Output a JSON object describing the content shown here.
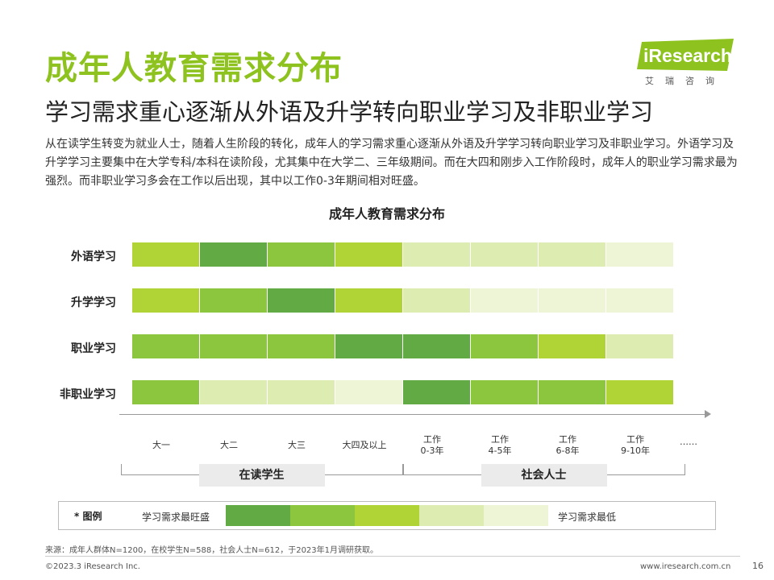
{
  "header": {
    "title": "成年人教育需求分布",
    "subtitle": "学习需求重心逐渐从外语及升学转向职业学习及非职业学习"
  },
  "logo": {
    "text": "iResearch",
    "cn": "艾瑞咨询",
    "color": "#8dc21f"
  },
  "description": "从在读学生转变为就业人士，随着人生阶段的转化，成年人的学习需求重心逐渐从外语及升学学习转向职业学习及非职业学习。外语学习及升学学习主要集中在大学专科/本科在读阶段，尤其集中在大学二、三年级期间。而在大四和刚步入工作阶段时，成年人的职业学习需求最为强烈。而非职业学习多会在工作以后出现，其中以工作0-3年期间相对旺盛。",
  "chart_data": {
    "type": "heatmap",
    "title": "成年人教育需求分布",
    "rows": [
      "外语学习",
      "升学学习",
      "职业学习",
      "非职业学习"
    ],
    "columns": [
      "大一",
      "大二",
      "大三",
      "大四及以上",
      "工作\n0-3年",
      "工作\n4-5年",
      "工作\n6-8年",
      "工作\n9-10年"
    ],
    "ellipsis": "……",
    "levels_note": "5 = 学习需求最旺盛, 1 = 学习需求最低",
    "values": [
      [
        3,
        5,
        4,
        3,
        2,
        2,
        2,
        1
      ],
      [
        3,
        4,
        5,
        3,
        2,
        1,
        1,
        1
      ],
      [
        4,
        4,
        4,
        5,
        5,
        4,
        3,
        2
      ],
      [
        4,
        2,
        2,
        1,
        5,
        4,
        4,
        3
      ]
    ],
    "level_colors": {
      "5": "#62aa44",
      "4": "#8cc63f",
      "3": "#b0d336",
      "2": "#ddecb1",
      "1": "#edf5d6"
    },
    "groups": [
      {
        "label": "在读学生",
        "columns": [
          0,
          3
        ]
      },
      {
        "label": "社会人士",
        "columns": [
          4,
          7
        ]
      }
    ]
  },
  "legend": {
    "title": "* 图例",
    "high_label": "学习需求最旺盛",
    "low_label": "学习需求最低",
    "colors": [
      "#62aa44",
      "#8cc63f",
      "#b0d336",
      "#ddecb1",
      "#edf5d6"
    ]
  },
  "source": "来源：成年人群体N=1200，在校学生N=588，社会人士N=612，于2023年1月调研获取。",
  "footer": {
    "copyright": "©2023.3 iResearch Inc.",
    "website": "www.iresearch.com.cn",
    "page": "16"
  }
}
